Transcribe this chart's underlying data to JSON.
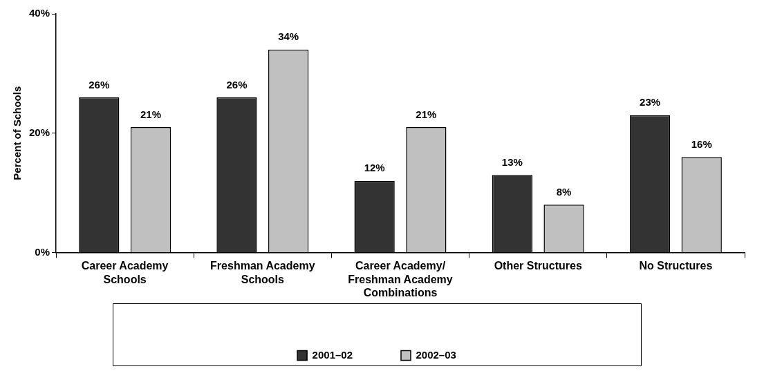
{
  "chart_data": {
    "type": "bar",
    "ylabel": "Percent of Schools",
    "categories": [
      "Career Academy Schools",
      "Freshman Academy Schools",
      "Career Academy/ Freshman Academy Combinations",
      "Other Structures",
      "No Structures"
    ],
    "series": [
      {
        "name": "2001–02",
        "color": "#333333",
        "values": [
          26,
          26,
          12,
          13,
          23
        ],
        "value_labels": [
          "26%",
          "26%",
          "12%",
          "13%",
          "23%"
        ]
      },
      {
        "name": "2002–03",
        "color": "#c0c0c0",
        "values": [
          21,
          34,
          21,
          8,
          16
        ],
        "value_labels": [
          "21%",
          "34%",
          "21%",
          "8%",
          "16%"
        ]
      }
    ],
    "ylim": [
      0,
      40
    ],
    "yticks": [
      {
        "value": 0,
        "label": "0%"
      },
      {
        "value": 20,
        "label": "20%"
      },
      {
        "value": 40,
        "label": "40%"
      }
    ],
    "grid": false,
    "legend": "bottom"
  }
}
